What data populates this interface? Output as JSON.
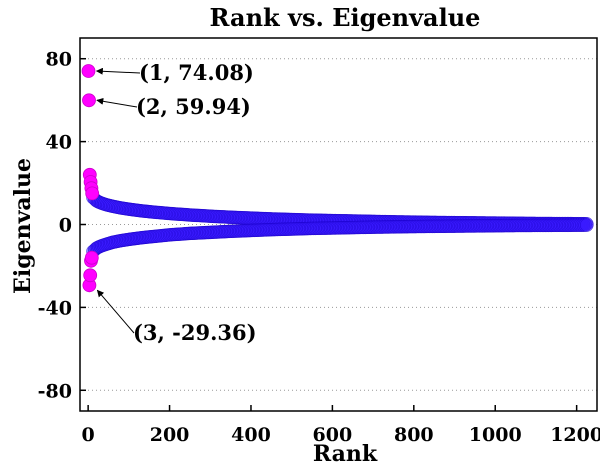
{
  "chart_data": {
    "type": "scatter",
    "title": "Rank vs. Eigenvalue",
    "xlabel": "Rank",
    "ylabel": "Eigenvalue",
    "xlim": [
      -20,
      1250
    ],
    "ylim": [
      -90,
      90
    ],
    "xticks": [
      0,
      200,
      400,
      600,
      800,
      1000,
      1200
    ],
    "yticks": [
      80,
      40,
      0,
      -40,
      -80
    ],
    "xtick_labels": [
      "0",
      "200",
      "400",
      "600",
      "800",
      "1000",
      "1200"
    ],
    "ytick_labels": [
      "80",
      "40",
      "0",
      "-40",
      "-80"
    ],
    "grid": true,
    "colors": {
      "top_points": "#ff00ff",
      "bulk_points": "#3a1cff",
      "grid": "#999999"
    },
    "highlighted_points": [
      {
        "rank": 1,
        "value": 74.08
      },
      {
        "rank": 2,
        "value": 59.94
      },
      {
        "rank": 3,
        "value": -29.36
      },
      {
        "rank": 4,
        "value": 24.0
      },
      {
        "rank": 5,
        "value": -24.5
      },
      {
        "rank": 6,
        "value": 20.5
      },
      {
        "rank": 7,
        "value": -17.5
      },
      {
        "rank": 8,
        "value": 17.5
      },
      {
        "rank": 9,
        "value": -16.0
      },
      {
        "rank": 10,
        "value": 15.0
      }
    ],
    "series": [
      {
        "x": [
          12,
          20,
          30,
          45,
          60,
          80,
          100,
          130,
          160,
          200,
          250,
          300,
          350,
          400,
          450,
          500,
          550,
          600,
          650,
          700,
          750,
          800,
          850,
          900,
          950,
          1000,
          1050,
          1100,
          1150,
          1200,
          1225
        ],
        "y": [
          13.0,
          11.5,
          10.5,
          9.5,
          8.8,
          8.0,
          7.4,
          6.6,
          6.0,
          5.3,
          4.6,
          4.0,
          3.5,
          3.1,
          2.7,
          2.4,
          2.1,
          1.9,
          1.7,
          1.5,
          1.3,
          1.15,
          1.0,
          0.9,
          0.8,
          0.7,
          0.6,
          0.5,
          0.45,
          0.4,
          0.35
        ]
      },
      {
        "x": [
          12,
          20,
          30,
          45,
          60,
          80,
          100,
          130,
          160,
          200,
          250,
          300,
          350,
          400,
          450,
          500,
          550,
          600,
          650,
          700,
          750,
          800,
          850,
          900,
          950,
          1000,
          1050,
          1100,
          1150,
          1200,
          1225
        ],
        "y": [
          -13.0,
          -11.5,
          -10.5,
          -9.5,
          -8.6,
          -7.8,
          -7.2,
          -6.4,
          -5.8,
          -5.0,
          -4.3,
          -3.8,
          -3.3,
          -2.9,
          -2.5,
          -2.2,
          -1.9,
          -1.7,
          -1.5,
          -1.3,
          -1.15,
          -1.0,
          -0.9,
          -0.8,
          -0.7,
          -0.6,
          -0.5,
          -0.45,
          -0.4,
          -0.35,
          -0.3
        ]
      }
    ],
    "annotations": [
      {
        "text": "(1, 74.08)",
        "target_rank": 1,
        "target_value": 74.08
      },
      {
        "text": "(2, 59.94)",
        "target_rank": 2,
        "target_value": 59.94
      },
      {
        "text": "(3, -29.36)",
        "target_rank": 3,
        "target_value": -29.36
      }
    ]
  }
}
